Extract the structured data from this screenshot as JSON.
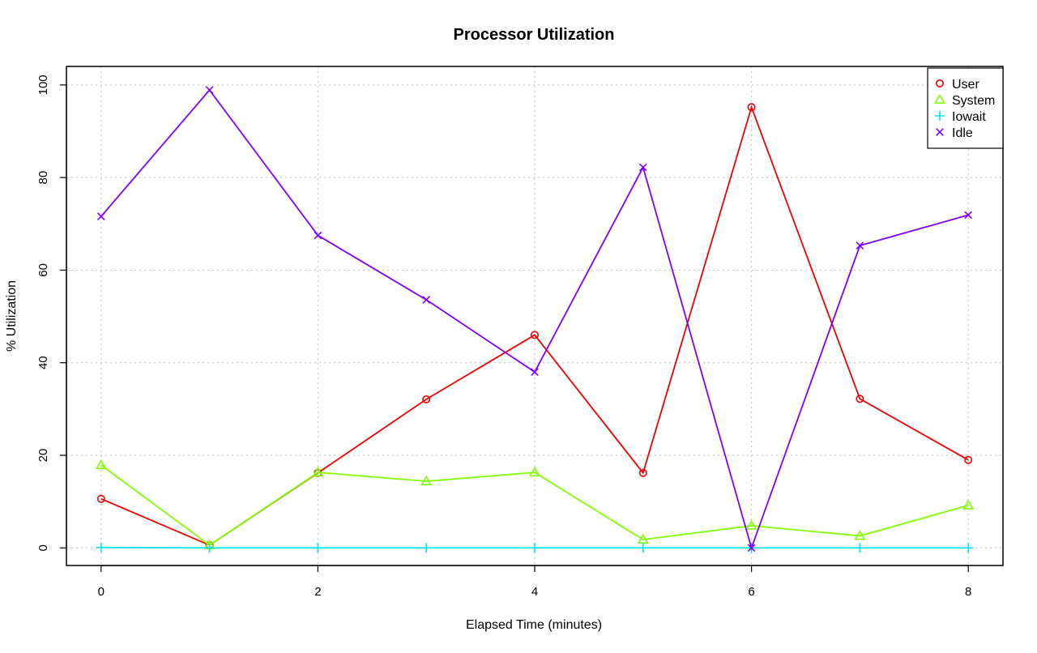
{
  "chart_data": {
    "type": "line",
    "title": "Processor Utilization",
    "xlabel": "Elapsed Time (minutes)",
    "ylabel": "% Utilization",
    "x": [
      0,
      1,
      2,
      3,
      4,
      5,
      6,
      7,
      8
    ],
    "xlim": [
      -0.32,
      8.32
    ],
    "ylim": [
      -3.8,
      104
    ],
    "xticks": [
      0,
      2,
      4,
      6,
      8
    ],
    "yticks": [
      0,
      20,
      40,
      60,
      80,
      100
    ],
    "grid": true,
    "legend_position": "top-right",
    "series": [
      {
        "name": "User",
        "color": "#ee0000",
        "marker": "circle",
        "values": [
          10.6,
          0.6,
          16.2,
          32.1,
          46.0,
          16.2,
          95.2,
          32.2,
          19.0
        ]
      },
      {
        "name": "System",
        "color": "#80ff00",
        "marker": "triangle",
        "values": [
          17.9,
          0.6,
          16.3,
          14.4,
          16.3,
          1.8,
          4.8,
          2.6,
          9.2
        ]
      },
      {
        "name": "Iowait",
        "color": "#00e5ee",
        "marker": "plus",
        "values": [
          0.1,
          0.0,
          0.0,
          0.0,
          0.0,
          0.0,
          0.0,
          0.0,
          0.0
        ]
      },
      {
        "name": "Idle",
        "color": "#8000ff",
        "marker": "cross",
        "values": [
          71.6,
          98.9,
          67.5,
          53.6,
          38.0,
          82.2,
          0.0,
          65.3,
          71.9
        ]
      }
    ]
  }
}
